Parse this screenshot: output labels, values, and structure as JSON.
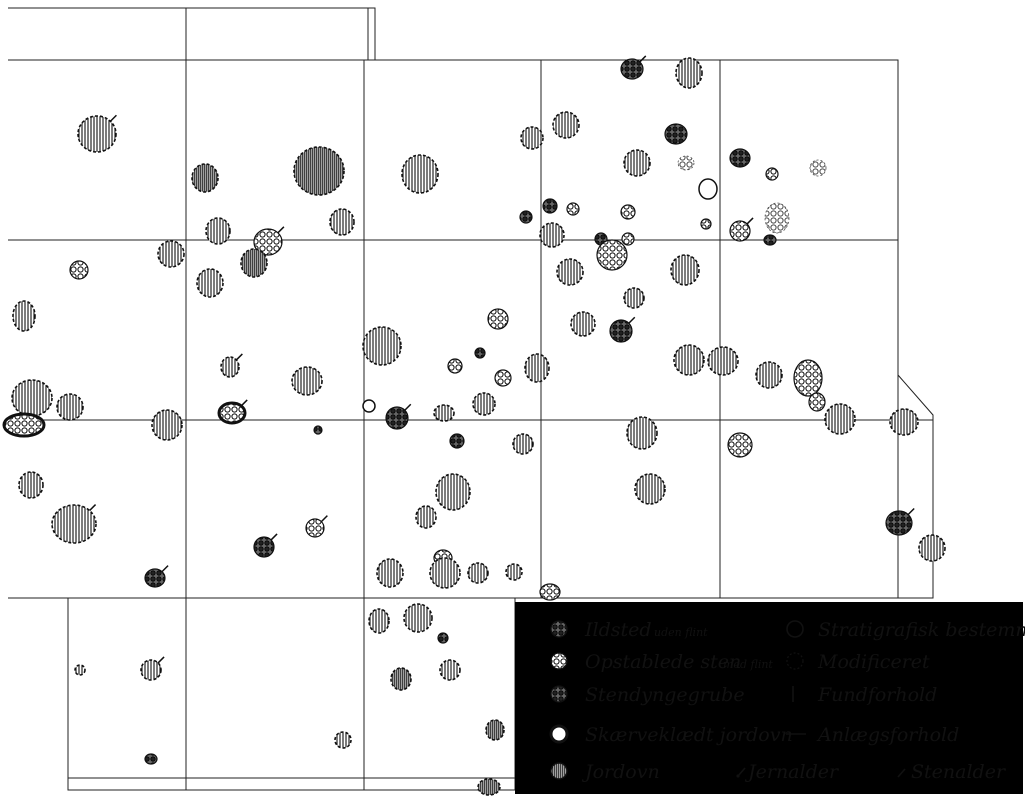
{
  "legend": {
    "ildsted": "Ildsted",
    "uden_flint": "uden flint",
    "opstablede": "Opstablede sten",
    "med_flint": "med flint",
    "stendynge": "Stendyngegrube",
    "skaerve": "Skærveklædt jordovn",
    "jordovn": "Jordovn",
    "stratigrafisk": "Stratigrafisk bestemmelse",
    "modificeret": "Modificeret",
    "fundforhold": "Fundforhold",
    "anlaegsforhold": "Anlægsforhold",
    "jernalder": "Jernalder",
    "stenalder": "Stenalder"
  },
  "colors": {
    "ink": "#111111",
    "paper": "#ffffff"
  }
}
